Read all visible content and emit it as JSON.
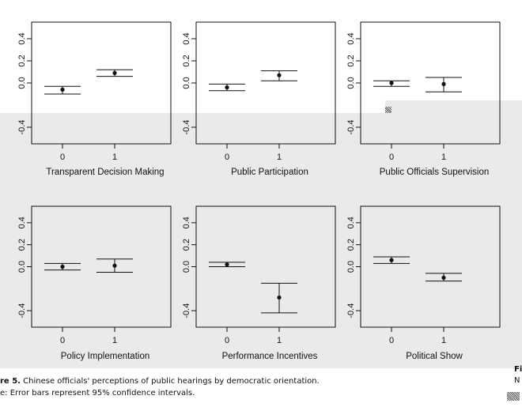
{
  "figure": {
    "caption_line1_prefix": "re 5.",
    "caption_line1_text": "Chinese officials' perceptions of public hearings by democratic orientation.",
    "caption_line2": "e: Error bars represent 95% confidence intervals.",
    "right_fragment_line1": "Fi",
    "right_fragment_line2": "N"
  },
  "colors": {
    "overlay": "#e9e7e8",
    "page": "#ffffff",
    "ink": "#111111"
  },
  "chart_data": [
    {
      "type": "scatter",
      "xlabel": "Transparent Decision Making",
      "x_ticks": [
        "0",
        "1"
      ],
      "y_ticks": [
        "-0.4",
        "0.0",
        "0.2",
        "0.4"
      ],
      "ylim": [
        -0.55,
        0.55
      ],
      "points": [
        {
          "x": 0,
          "y": -0.06,
          "ci": [
            -0.1,
            -0.03
          ]
        },
        {
          "x": 1,
          "y": 0.09,
          "ci": [
            0.06,
            0.12
          ]
        }
      ]
    },
    {
      "type": "scatter",
      "xlabel": "Public Participation",
      "x_ticks": [
        "0",
        "1"
      ],
      "y_ticks": [
        "-0.4",
        "0.0",
        "0.2",
        "0.4"
      ],
      "ylim": [
        -0.55,
        0.55
      ],
      "points": [
        {
          "x": 0,
          "y": -0.04,
          "ci": [
            -0.07,
            -0.01
          ]
        },
        {
          "x": 1,
          "y": 0.07,
          "ci": [
            0.02,
            0.11
          ]
        }
      ]
    },
    {
      "type": "scatter",
      "xlabel": "Public Officials Supervision",
      "x_ticks": [
        "0",
        "1"
      ],
      "y_ticks": [
        "-0.4",
        "0.0",
        "0.2",
        "0.4"
      ],
      "ylim": [
        -0.55,
        0.55
      ],
      "points": [
        {
          "x": 0,
          "y": 0.0,
          "ci": [
            -0.03,
            0.02
          ]
        },
        {
          "x": 1,
          "y": -0.01,
          "ci": [
            -0.08,
            0.05
          ]
        }
      ]
    },
    {
      "type": "scatter",
      "xlabel": "Policy Implementation",
      "x_ticks": [
        "0",
        "1"
      ],
      "y_ticks": [
        "-0.4",
        "0.0",
        "0.2",
        "0.4"
      ],
      "ylim": [
        -0.55,
        0.55
      ],
      "points": [
        {
          "x": 0,
          "y": 0.0,
          "ci": [
            -0.03,
            0.03
          ]
        },
        {
          "x": 1,
          "y": 0.01,
          "ci": [
            -0.05,
            0.07
          ]
        }
      ]
    },
    {
      "type": "scatter",
      "xlabel": "Performance Incentives",
      "x_ticks": [
        "0",
        "1"
      ],
      "y_ticks": [
        "-0.4",
        "0.0",
        "0.2",
        "0.4"
      ],
      "ylim": [
        -0.55,
        0.55
      ],
      "points": [
        {
          "x": 0,
          "y": 0.02,
          "ci": [
            0.0,
            0.04
          ]
        },
        {
          "x": 1,
          "y": -0.28,
          "ci": [
            -0.42,
            -0.15
          ]
        }
      ]
    },
    {
      "type": "scatter",
      "xlabel": "Political Show",
      "x_ticks": [
        "0",
        "1"
      ],
      "y_ticks": [
        "-0.4",
        "0.0",
        "0.2",
        "0.4"
      ],
      "ylim": [
        -0.55,
        0.55
      ],
      "points": [
        {
          "x": 0,
          "y": 0.06,
          "ci": [
            0.03,
            0.09
          ]
        },
        {
          "x": 1,
          "y": -0.1,
          "ci": [
            -0.13,
            -0.06
          ]
        }
      ]
    }
  ]
}
